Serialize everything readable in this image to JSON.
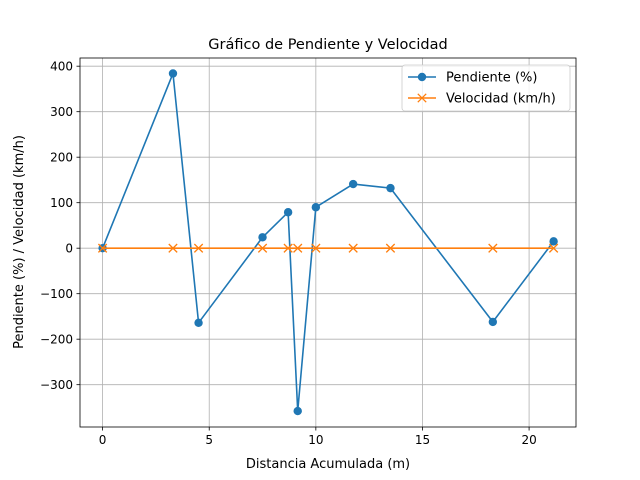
{
  "chart_data": {
    "type": "line",
    "title": "Gráfico de Pendiente y Velocidad",
    "xlabel": "Distancia Acumulada (m)",
    "ylabel": "Pendiente (%) / Velocidad (km/h)",
    "xlim": [
      -1.06,
      22.2
    ],
    "ylim": [
      -393,
      418
    ],
    "xticks": [
      0,
      5,
      10,
      15,
      20
    ],
    "yticks": [
      -300,
      -200,
      -100,
      0,
      100,
      200,
      300,
      400
    ],
    "ytick_labels": [
      "−300",
      "−200",
      "−100",
      "0",
      "100",
      "200",
      "300",
      "400"
    ],
    "grid": true,
    "legend_position": "upper right",
    "x": [
      0,
      3.3,
      4.5,
      7.5,
      8.7,
      9.15,
      10.0,
      11.75,
      13.5,
      18.3,
      21.15
    ],
    "series": [
      {
        "name": "Pendiente (%)",
        "color": "#1f77b4",
        "marker": "circle",
        "values": [
          0,
          384,
          -164,
          24,
          79,
          -358,
          90,
          141,
          132,
          -162,
          15
        ]
      },
      {
        "name": "Velocidad (km/h)",
        "color": "#ff7f0e",
        "marker": "x",
        "values": [
          0,
          0,
          0,
          0,
          0,
          0,
          0,
          0,
          0,
          0,
          0
        ]
      }
    ]
  }
}
